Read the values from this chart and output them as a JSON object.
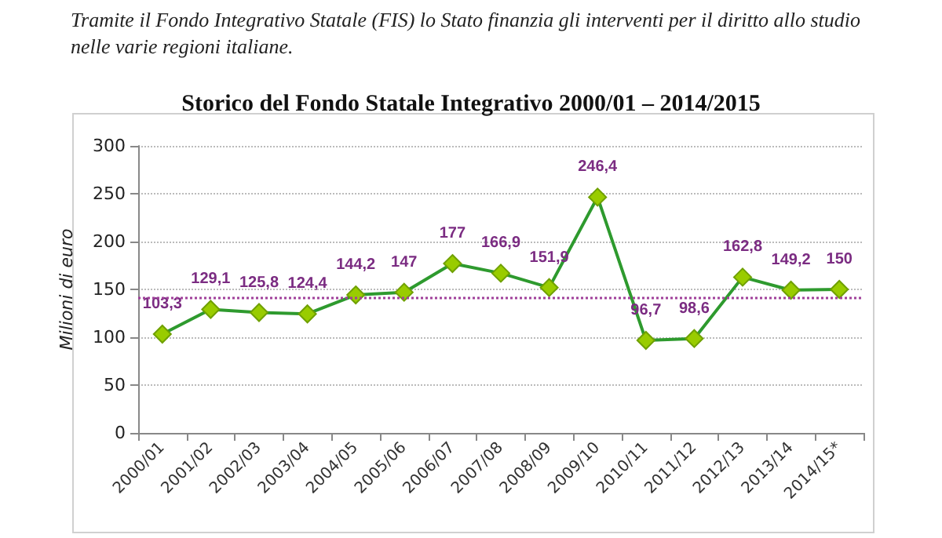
{
  "chart_data": {
    "type": "line",
    "title": "Storico del Fondo Statale Integrativo 2000/01 – 2014/2015",
    "annotations": [
      "Tramite il Fondo Integrativo Statale (FIS) lo Stato finanzia gli interventi per il diritto allo studio nelle varie regioni italiane."
    ],
    "ylabel": "Milioni di euro",
    "categories": [
      "2000/01",
      "2001/02",
      "2002/03",
      "2003/04",
      "2004/05",
      "2005/06",
      "2006/07",
      "2007/08",
      "2008/09",
      "2009/10",
      "2010/11",
      "2011/12",
      "2012/13",
      "2013/14",
      "2014/15*"
    ],
    "series": [
      {
        "color": "#2e9a2e",
        "values": [
          103.3,
          129.1,
          125.8,
          124.4,
          144.2,
          147,
          177,
          166.9,
          151.9,
          246.4,
          96.7,
          98.6,
          162.8,
          149.2,
          150
        ],
        "value_labels": [
          "103,3",
          "129,1",
          "125,8",
          "124,4",
          "144,2",
          "147",
          "177",
          "166,9",
          "151,9",
          "246,4",
          "96,7",
          "98,6",
          "162,8",
          "149,2",
          "150"
        ]
      }
    ],
    "ylim": [
      0,
      300
    ],
    "yticks": [
      0,
      50,
      100,
      150,
      200,
      250,
      300
    ],
    "grid": "y",
    "marker": "diamond",
    "line_style": "solid",
    "ref_lines": [
      {
        "axis": "y",
        "value": 142,
        "color": "#a0409a",
        "line_style": "dotted"
      }
    ]
  }
}
